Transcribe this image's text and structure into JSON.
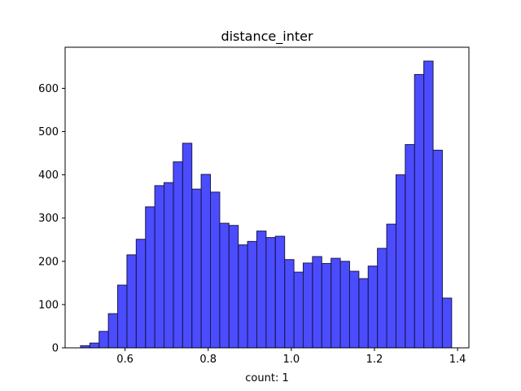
{
  "chart_data": {
    "type": "bar",
    "title": "distance_inter",
    "xlabel": "count: 1",
    "ylabel": "",
    "xlim": [
      0.4558,
      1.4272
    ],
    "ylim": [
      0,
      695
    ],
    "xticks": [
      "0.6",
      "0.8",
      "1.0",
      "1.2",
      "1.4"
    ],
    "yticks": [
      "0",
      "100",
      "200",
      "300",
      "400",
      "500",
      "600"
    ],
    "grid": false,
    "bar_color": "#0000ff",
    "bar_edge_color": "#1a1a4d",
    "bins": {
      "start": 0.4929,
      "width": 0.02232,
      "counts": [
        5,
        11,
        38,
        79,
        145,
        215,
        251,
        326,
        375,
        382,
        430,
        473,
        367,
        401,
        360,
        288,
        283,
        238,
        246,
        270,
        255,
        258,
        204,
        175,
        196,
        211,
        195,
        207,
        200,
        177,
        160,
        189,
        230,
        286,
        400,
        470,
        632,
        663,
        457,
        115
      ]
    }
  }
}
